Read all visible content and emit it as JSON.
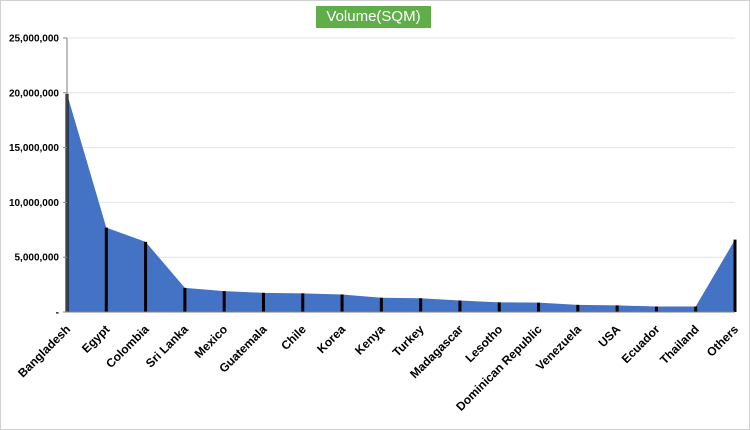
{
  "chart_data": {
    "type": "area",
    "title": "Volume(SQM)",
    "xlabel": "",
    "ylabel": "",
    "categories": [
      "Bangladesh",
      "Egypt",
      "Colombia",
      "Sri Lanka",
      "Mexico",
      "Guatemala",
      "Chile",
      "Korea",
      "Kenya",
      "Turkey",
      "Madagascar",
      "Lesotho",
      "Dominican Republic",
      "Venezuela",
      "USA",
      "Ecuador",
      "Thailand",
      "Others"
    ],
    "values": [
      19900000,
      7700000,
      6400000,
      2200000,
      1900000,
      1750000,
      1700000,
      1600000,
      1300000,
      1250000,
      1050000,
      880000,
      850000,
      650000,
      600000,
      500000,
      500000,
      6600000
    ],
    "ylim": [
      0,
      25000000
    ],
    "yticks": [
      0,
      5000000,
      10000000,
      15000000,
      20000000,
      25000000
    ],
    "ytick_labels": [
      "-",
      "5,000,000",
      "10,000,000",
      "15,000,000",
      "20,000,000",
      "25,000,000"
    ],
    "grid": true,
    "colors": {
      "fill": "#4472c4",
      "drop_lines": "#000000",
      "title_bg": "#5fae4a",
      "gridline": "#e4e4e4"
    }
  }
}
